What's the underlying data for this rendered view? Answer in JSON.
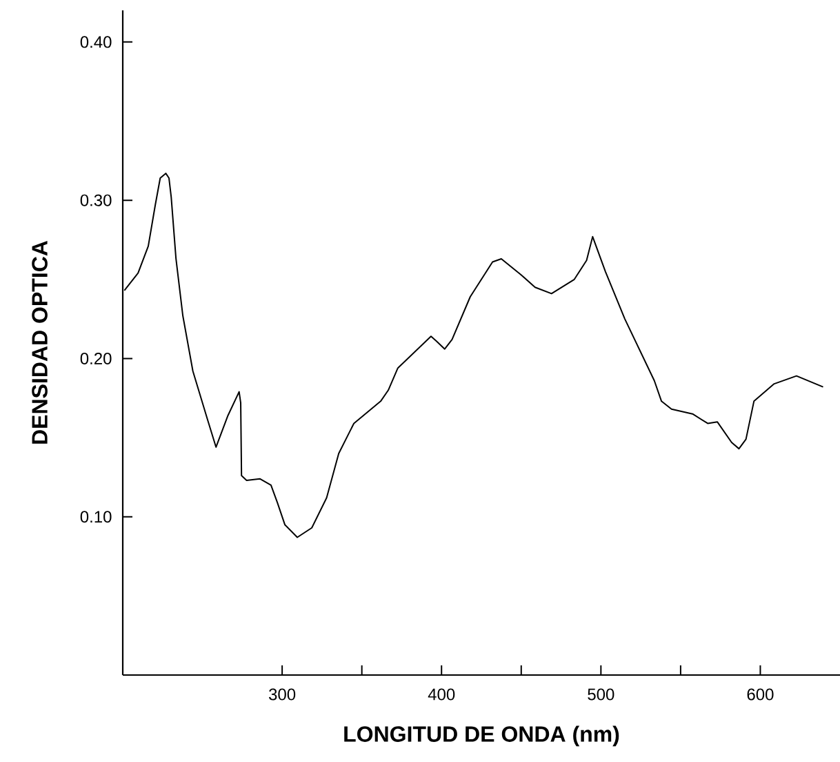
{
  "chart_data": {
    "type": "line",
    "xlabel": "LONGITUD DE ONDA (nm)",
    "ylabel": "DENSIDAD OPTICA",
    "xlim": [
      200,
      650
    ],
    "ylim": [
      0,
      0.42
    ],
    "xticks": [
      300,
      {
        "value": 350,
        "label": null
      },
      400,
      {
        "value": 450,
        "label": null
      },
      500,
      {
        "value": 550,
        "label": null
      },
      600
    ],
    "yticks": [
      {
        "value": 0.1,
        "label": "0.10"
      },
      {
        "value": 0.2,
        "label": "0.20"
      },
      {
        "value": 0.3,
        "label": "0.30"
      },
      {
        "value": 0.4,
        "label": "0.40"
      }
    ],
    "marker": "none",
    "line_style": "solid",
    "series": [
      {
        "color": "#000000",
        "x": [
          201,
          209.6,
          216,
          220.4,
          223.5,
          227,
          229,
          230.4,
          233.4,
          237.7,
          244,
          253,
          258.5,
          266,
          273,
          274,
          274.5,
          277.7,
          286,
          293,
          297,
          301.7,
          309.5,
          318.6,
          327.9,
          335.5,
          345,
          361.8,
          366.6,
          372.6,
          393.4,
          396.8,
          402,
          406.6,
          418,
          432,
          437.5,
          449.8,
          458.7,
          469,
          483.3,
          491,
          494.8,
          502.8,
          515,
          533.5,
          538,
          544.3,
          557.5,
          567,
          573,
          582,
          586.6,
          591,
          596,
          608.7,
          622.7,
          639.4
        ],
        "values": [
          0.243,
          0.254,
          0.271,
          0.297,
          0.314,
          0.317,
          0.314,
          0.302,
          0.263,
          0.227,
          0.192,
          0.162,
          0.144,
          0.164,
          0.179,
          0.172,
          0.126,
          0.123,
          0.124,
          0.12,
          0.109,
          0.095,
          0.087,
          0.093,
          0.112,
          0.14,
          0.159,
          0.173,
          0.18,
          0.194,
          0.214,
          0.211,
          0.206,
          0.212,
          0.239,
          0.261,
          0.263,
          0.253,
          0.245,
          0.241,
          0.25,
          0.262,
          0.277,
          0.255,
          0.225,
          0.186,
          0.173,
          0.168,
          0.165,
          0.159,
          0.16,
          0.147,
          0.143,
          0.149,
          0.173,
          0.184,
          0.189,
          0.182
        ]
      }
    ]
  }
}
